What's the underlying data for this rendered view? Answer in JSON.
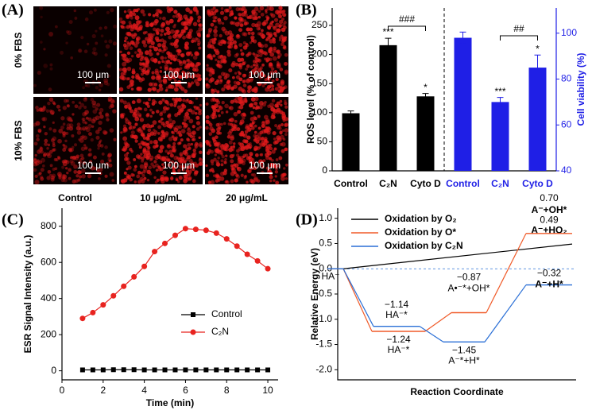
{
  "panel_a": {
    "panel_label": "(A)",
    "rows": [
      "0% FBS",
      "10% FBS"
    ],
    "columns": [
      "Control",
      "10 μg/mL",
      "20 μg/mL"
    ],
    "scale_bar": "100 μm"
  },
  "chart_data": [
    {
      "type": "bar",
      "panel_label": "(B)",
      "categories": [
        "Control",
        "C₂N",
        "Cyto D",
        "Control",
        "C₂N",
        "Cyto D"
      ],
      "series": [
        {
          "name": "ROS level",
          "color": "#000000",
          "values": [
            99,
            216,
            128,
            null,
            null,
            null
          ],
          "errors": [
            4,
            12,
            5,
            null,
            null,
            null
          ]
        },
        {
          "name": "Cell viability",
          "color": "#1f1fe6",
          "axis": "y2",
          "values": [
            null,
            null,
            null,
            98,
            70,
            85
          ],
          "errors": [
            null,
            null,
            null,
            2.5,
            2,
            5.5
          ]
        }
      ],
      "ylabel": "ROS level (% of control)",
      "y2label": "Cell viability (%)",
      "ylim": [
        0,
        280
      ],
      "yticks": [
        0,
        50,
        100,
        150,
        200,
        250
      ],
      "y2lim": [
        40,
        111
      ],
      "y2ticks": [
        40,
        60,
        80,
        100
      ],
      "annotations": [
        "***",
        "*",
        "###",
        "***",
        "*",
        "##"
      ]
    },
    {
      "type": "line",
      "panel_label": "(C)",
      "x": [
        1,
        1.5,
        2,
        2.5,
        3,
        3.5,
        4,
        4.5,
        5,
        5.5,
        6,
        6.5,
        7,
        7.5,
        8,
        8.5,
        9,
        9.5,
        10
      ],
      "series": [
        {
          "name": "Control",
          "color": "#000000",
          "marker": "square",
          "values": [
            5,
            5,
            5,
            6,
            6,
            6,
            5,
            5,
            5,
            5,
            5,
            5,
            5,
            5,
            5,
            5,
            5,
            5,
            5
          ]
        },
        {
          "name": "C₂N",
          "color": "#e8231f",
          "marker": "circle",
          "values": [
            290,
            322,
            365,
            415,
            468,
            520,
            578,
            660,
            705,
            750,
            787,
            783,
            778,
            762,
            730,
            690,
            645,
            608,
            565
          ]
        }
      ],
      "xlabel": "Time (min)",
      "ylabel": "ESR Signal Intensity (a.u.)",
      "xlim": [
        0,
        10.5
      ],
      "xticks": [
        0,
        2,
        4,
        6,
        8,
        10
      ],
      "ylim": [
        -50,
        900
      ],
      "yticks": [
        0,
        200,
        400,
        600,
        800
      ]
    },
    {
      "type": "energy",
      "panel_label": "(D)",
      "series": [
        {
          "name": "Oxidation by O₂",
          "color": "#000000",
          "x": [
            0,
            3
          ],
          "values": [
            0,
            0.49
          ],
          "value_labels": [
            null,
            "0.49"
          ],
          "level_labels": [
            null,
            "A⁻+HO₂"
          ]
        },
        {
          "name": "Oxidation by O*",
          "color": "#f05a28",
          "x": [
            0,
            1,
            2,
            3
          ],
          "values": [
            0,
            -1.24,
            -0.87,
            0.7
          ],
          "value_labels": [
            null,
            "−1.24",
            "−0.87",
            "0.70"
          ],
          "level_labels": [
            "HA⁻",
            "HA⁻*",
            "A•⁻*+OH*",
            "A⁻+OH*"
          ]
        },
        {
          "name": "Oxidation by C₂N",
          "color": "#2a6fd6",
          "x": [
            0,
            1,
            2,
            3
          ],
          "values": [
            0,
            -1.14,
            -1.45,
            -0.32
          ],
          "value_labels": [
            null,
            "−1.14",
            "−1.45",
            "−0.32"
          ],
          "level_labels": [
            null,
            "HA⁻*",
            "A⁻*+H*",
            "A⁻+H*"
          ]
        }
      ],
      "xlabel": "Reaction Coordinate",
      "ylabel": "Relative Energy (eV)",
      "ylim": [
        -2.2,
        1.2
      ],
      "yticks": [
        {
          "value": 1,
          "label": "1.0"
        },
        {
          "value": 0.5,
          "label": "0.5"
        },
        {
          "value": 0,
          "label": "0.0"
        },
        {
          "value": -0.5,
          "label": "-0.5"
        },
        {
          "value": -1,
          "label": "-1.0"
        },
        {
          "value": -1.5,
          "label": "-1.5"
        },
        {
          "value": -2,
          "label": "-2.0"
        }
      ]
    }
  ]
}
